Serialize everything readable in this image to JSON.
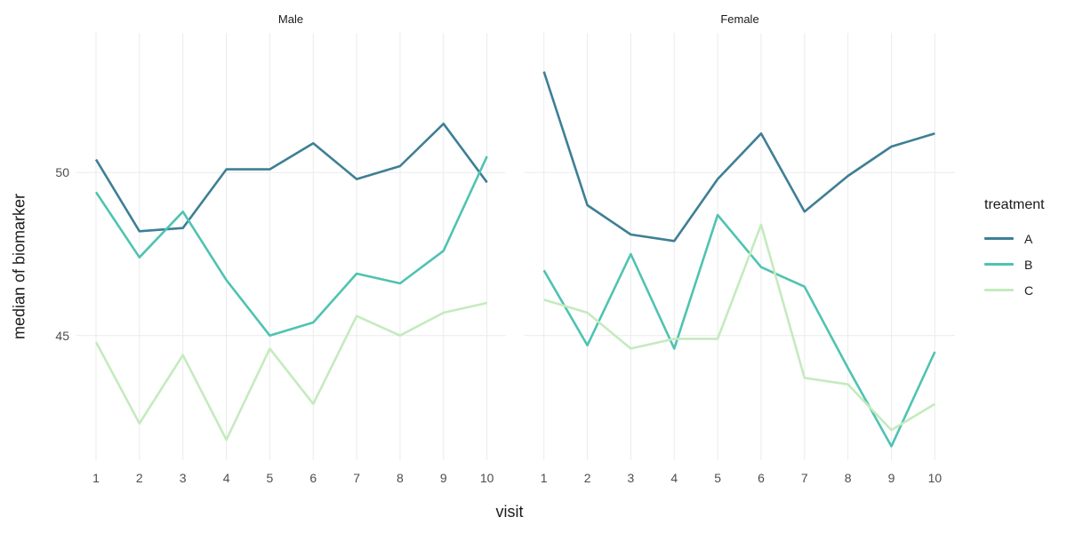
{
  "chart_data": {
    "type": "line",
    "xlabel": "visit",
    "ylabel": "median of biomarker",
    "legend_title": "treatment",
    "legend_position": "right",
    "grid": "major-only",
    "x": [
      1,
      2,
      3,
      4,
      5,
      6,
      7,
      8,
      9,
      10
    ],
    "x_tick_labels": [
      "1",
      "2",
      "3",
      "4",
      "5",
      "6",
      "7",
      "8",
      "9",
      "10"
    ],
    "y_ticks": [
      45,
      50
    ],
    "y_tick_labels": [
      "45",
      "50"
    ],
    "ylim": [
      41.2,
      54.3
    ],
    "facets": [
      {
        "title": "Male",
        "series": [
          {
            "name": "A",
            "color": "#3e7f95",
            "values": [
              50.4,
              48.2,
              48.3,
              50.1,
              50.1,
              50.9,
              49.8,
              50.2,
              51.5,
              49.7
            ]
          },
          {
            "name": "B",
            "color": "#4fc3b2",
            "values": [
              49.4,
              47.4,
              48.8,
              46.7,
              45.0,
              45.4,
              46.9,
              46.6,
              47.6,
              50.5
            ]
          },
          {
            "name": "C",
            "color": "#c4ebbe",
            "values": [
              44.8,
              42.3,
              44.4,
              41.8,
              44.6,
              42.9,
              45.6,
              45.0,
              45.7,
              46.0
            ]
          }
        ]
      },
      {
        "title": "Female",
        "series": [
          {
            "name": "A",
            "color": "#3e7f95",
            "values": [
              53.1,
              49.0,
              48.1,
              47.9,
              49.8,
              51.2,
              48.8,
              49.9,
              50.8,
              51.2
            ]
          },
          {
            "name": "B",
            "color": "#4fc3b2",
            "values": [
              47.0,
              44.7,
              47.5,
              44.6,
              48.7,
              47.1,
              46.5,
              44.0,
              41.6,
              44.5
            ]
          },
          {
            "name": "C",
            "color": "#c4ebbe",
            "values": [
              46.1,
              45.7,
              44.6,
              44.9,
              44.9,
              48.4,
              43.7,
              43.5,
              42.1,
              42.9
            ]
          }
        ]
      }
    ]
  },
  "colors": {
    "background": "#ffffff",
    "gridline": "#ebebeb",
    "tick_text": "#4d4d4d",
    "title_text": "#1a1a1a",
    "treatment_A": "#3e7f95",
    "treatment_B": "#4fc3b2",
    "treatment_C": "#c4ebbe"
  }
}
